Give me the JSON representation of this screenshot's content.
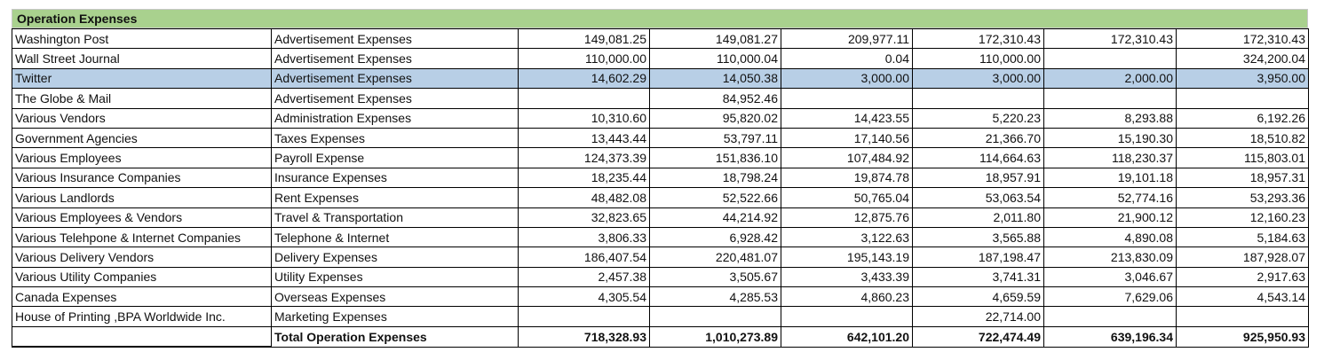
{
  "sheet": {
    "title": "Operation Expenses",
    "highlight_color": "#b8cfe6",
    "header_color": "#a9d18e"
  },
  "rows": [
    {
      "payee": "Washington Post",
      "category": "Advertisement Expenses",
      "values": [
        "149,081.25",
        "149,081.27",
        "209,977.11",
        "172,310.43",
        "172,310.43",
        "172,310.43"
      ],
      "highlighted": false
    },
    {
      "payee": "Wall Street Journal",
      "category": "Advertisement Expenses",
      "values": [
        "110,000.00",
        "110,000.04",
        "0.04",
        "110,000.00",
        "",
        "324,200.04"
      ],
      "highlighted": false
    },
    {
      "payee": "Twitter",
      "category": "Advertisement Expenses",
      "values": [
        "14,602.29",
        "14,050.38",
        "3,000.00",
        "3,000.00",
        "2,000.00",
        "3,950.00"
      ],
      "highlighted": true
    },
    {
      "payee": "The Globe & Mail",
      "category": "Advertisement Expenses",
      "values": [
        "",
        "84,952.46",
        "",
        "",
        "",
        ""
      ],
      "highlighted": false
    },
    {
      "payee": "Various Vendors",
      "category": "Administration Expenses",
      "values": [
        "10,310.60",
        "95,820.02",
        "14,423.55",
        "5,220.23",
        "8,293.88",
        "6,192.26"
      ],
      "highlighted": false
    },
    {
      "payee": "Government Agencies",
      "category": "Taxes Expenses",
      "values": [
        "13,443.44",
        "53,797.11",
        "17,140.56",
        "21,366.70",
        "15,190.30",
        "18,510.82"
      ],
      "highlighted": false
    },
    {
      "payee": "Various Employees",
      "category": "Payroll Expense",
      "values": [
        "124,373.39",
        "151,836.10",
        "107,484.92",
        "114,664.63",
        "118,230.37",
        "115,803.01"
      ],
      "highlighted": false
    },
    {
      "payee": "Various Insurance Companies",
      "category": "Insurance Expenses",
      "values": [
        "18,235.44",
        "18,798.24",
        "19,874.78",
        "18,957.91",
        "19,101.18",
        "18,957.31"
      ],
      "highlighted": false
    },
    {
      "payee": "Various Landlords",
      "category": "Rent Expenses",
      "values": [
        "48,482.08",
        "52,522.66",
        "50,765.04",
        "53,063.54",
        "52,774.16",
        "53,293.36"
      ],
      "highlighted": false
    },
    {
      "payee": "Various Employees & Vendors",
      "category": "Travel & Transportation",
      "values": [
        "32,823.65",
        "44,214.92",
        "12,875.76",
        "2,011.80",
        "21,900.12",
        "12,160.23"
      ],
      "highlighted": false
    },
    {
      "payee": "Various Telehpone & Internet Companies",
      "category": "Telephone & Internet",
      "values": [
        "3,806.33",
        "6,928.42",
        "3,122.63",
        "3,565.88",
        "4,890.08",
        "5,184.63"
      ],
      "highlighted": false
    },
    {
      "payee": "Various Delivery Vendors",
      "category": "Delivery Expenses",
      "values": [
        "186,407.54",
        "220,481.07",
        "195,143.19",
        "187,198.47",
        "213,830.09",
        "187,928.07"
      ],
      "highlighted": false
    },
    {
      "payee": "Various Utility Companies",
      "category": "Utility Expenses",
      "values": [
        "2,457.38",
        "3,505.67",
        "3,433.39",
        "3,741.31",
        "3,046.67",
        "2,917.63"
      ],
      "highlighted": false
    },
    {
      "payee": "Canada Expenses",
      "category": "Overseas Expenses",
      "values": [
        "4,305.54",
        "4,285.53",
        "4,860.23",
        "4,659.59",
        "7,629.06",
        "4,543.14"
      ],
      "highlighted": false
    },
    {
      "payee": "House of Printing ,BPA Worldwide Inc.",
      "category": "Marketing Expenses",
      "values": [
        "",
        "",
        "",
        "22,714.00",
        "",
        ""
      ],
      "highlighted": false
    }
  ],
  "total": {
    "label": "Total Operation Expenses",
    "values": [
      "718,328.93",
      "1,010,273.89",
      "642,101.20",
      "722,474.49",
      "639,196.34",
      "925,950.93"
    ]
  }
}
